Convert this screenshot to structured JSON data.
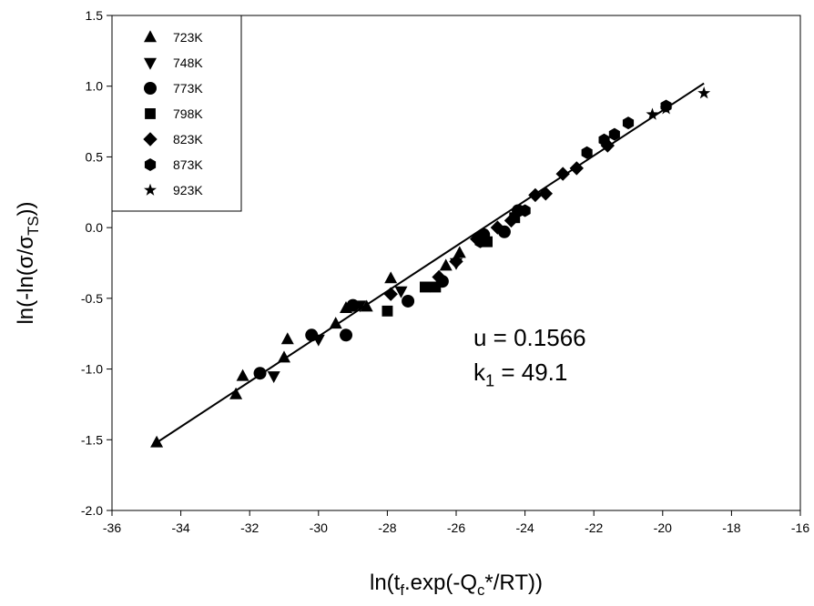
{
  "chart_data": {
    "type": "scatter",
    "x_label": [
      "ln(t",
      "f",
      ".exp(-Q",
      "c",
      "*/RT))"
    ],
    "y_label": [
      "ln(-ln(σ/σ",
      "TS",
      "))"
    ],
    "annotations": [
      [
        "u = 0.1566"
      ],
      [
        "k",
        "1",
        " = 49.1"
      ]
    ],
    "xlim": [
      -36,
      -16
    ],
    "xticks": [
      -36,
      -34,
      -32,
      -30,
      -28,
      -26,
      -24,
      -22,
      -20,
      -18,
      -16
    ],
    "ylim": [
      -2,
      1.5
    ],
    "yticks": [
      {
        "value": -2,
        "label": "-2.0"
      },
      {
        "value": -1.5,
        "label": "-1.5"
      },
      {
        "value": -1,
        "label": "-1.0"
      },
      {
        "value": -0.5,
        "label": "-0.5"
      },
      {
        "value": 0,
        "label": "0.0"
      },
      {
        "value": 0.5,
        "label": "0.5"
      },
      {
        "value": 1,
        "label": "1.0"
      },
      {
        "value": 1.5,
        "label": "1.5"
      }
    ],
    "legend": "top-left",
    "fit_line": {
      "x": [
        -34.7,
        -18.8
      ],
      "values": [
        -1.52,
        1.02
      ],
      "color": "#000000"
    },
    "series": [
      {
        "name": "723K",
        "marker": "triangle-up",
        "color": "#000000",
        "x": [
          -34.7,
          -32.4,
          -32.2,
          -31.0,
          -30.9,
          -29.5,
          -29.2,
          -28.6,
          -27.9,
          -26.3,
          -25.9
        ],
        "values": [
          -1.52,
          -1.18,
          -1.05,
          -0.92,
          -0.79,
          -0.68,
          -0.57,
          -0.56,
          -0.36,
          -0.27,
          -0.18
        ]
      },
      {
        "name": "748K",
        "marker": "triangle-down",
        "color": "#000000",
        "x": [
          -31.3,
          -30.0,
          -28.8,
          -27.6,
          -26.0
        ],
        "values": [
          -1.05,
          -0.79,
          -0.55,
          -0.45,
          -0.25
        ]
      },
      {
        "name": "773K",
        "marker": "circle",
        "color": "#000000",
        "x": [
          -31.7,
          -30.2,
          -29.2,
          -29.0,
          -27.4,
          -26.4,
          -25.2,
          -24.6,
          -24.2
        ],
        "values": [
          -1.03,
          -0.76,
          -0.76,
          -0.55,
          -0.52,
          -0.38,
          -0.05,
          -0.03,
          0.12
        ]
      },
      {
        "name": "798K",
        "marker": "square",
        "color": "#000000",
        "x": [
          -28.0,
          -26.9,
          -26.6,
          -25.1,
          -24.3
        ],
        "values": [
          -0.59,
          -0.42,
          -0.42,
          -0.1,
          0.07
        ]
      },
      {
        "name": "823K",
        "marker": "diamond",
        "color": "#000000",
        "x": [
          -27.9,
          -26.5,
          -26.0,
          -25.4,
          -24.8,
          -24.4,
          -23.7,
          -23.4,
          -22.9,
          -22.5,
          -21.6
        ],
        "values": [
          -0.47,
          -0.35,
          -0.24,
          -0.08,
          0.0,
          0.05,
          0.23,
          0.24,
          0.38,
          0.42,
          0.58
        ]
      },
      {
        "name": "873K",
        "marker": "hexagon",
        "color": "#000000",
        "x": [
          -25.3,
          -24.0,
          -22.2,
          -21.7,
          -21.4,
          -21.0,
          -19.9
        ],
        "values": [
          -0.1,
          0.12,
          0.53,
          0.62,
          0.66,
          0.74,
          0.86
        ]
      },
      {
        "name": "923K",
        "marker": "star",
        "color": "#000000",
        "x": [
          -20.3,
          -19.9,
          -18.8
        ],
        "values": [
          0.8,
          0.84,
          0.95
        ]
      }
    ]
  }
}
